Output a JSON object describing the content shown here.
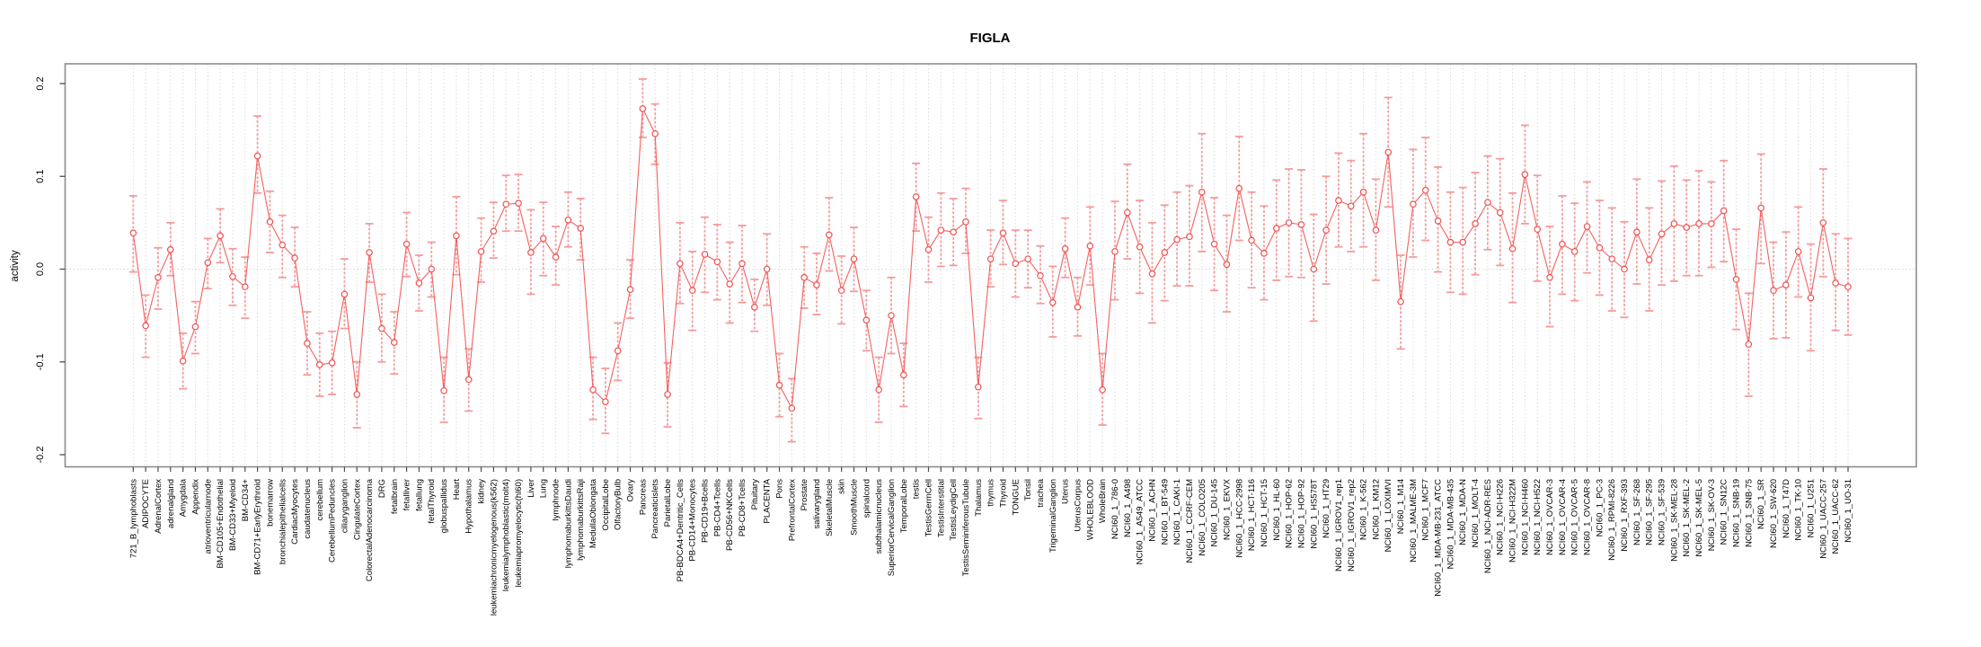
{
  "page": {
    "title": "FIGLA"
  },
  "chart_data": {
    "type": "line",
    "title": "FIGLA",
    "xlabel": "",
    "ylabel": "activity",
    "ylim": [
      -0.2,
      0.2
    ],
    "yticks": [
      {
        "label": "0.2",
        "value": 0.2
      },
      {
        "label": "0.1",
        "value": 0.1
      },
      {
        "label": "0.0",
        "value": 0.0
      },
      {
        "label": "-0.1",
        "value": -0.1
      },
      {
        "label": "-0.2",
        "value": -0.2
      }
    ],
    "grid": "dotted vertical gridline at every category; dotted horizontal line at y=0",
    "legend_position": "none",
    "marker": "open-circle-with-error-bars-connected-by-line",
    "colors": {
      "point": "#f25050",
      "line": "#f25050",
      "error_bar": "#f59b9b",
      "gridline": "#dcdcdc",
      "zero_line": "#d8d8d8",
      "box": "#8c8c8c",
      "tick": "#4d4d4d",
      "text": "#000000",
      "background": "#ffffff"
    },
    "categories": [
      "721_B_lymphoblasts",
      "ADIPOCYTE",
      "AdrenalCortex",
      "adrenalgland",
      "Amygdala",
      "Appendix",
      "atrioventricularnode",
      "BM-CD105+Endothelial",
      "BM-CD33+Myeloid",
      "BM-CD34+",
      "BM-CD71+EarlyErythroid",
      "bonemarrow",
      "bronchialepithelialcells",
      "CardiacMyocytes",
      "caudatenucleus",
      "cerebellum",
      "CerebellumPeduncles",
      "ciliaryganglion",
      "CingulateCortex",
      "ColorectalAdenocarcinoma",
      "DRG",
      "fetalbrain",
      "fetalliver",
      "fetallung",
      "fetalThyroid",
      "globuspallidus",
      "Heart",
      "Hypothalamus",
      "kidney",
      "leukemiachronicmyelogenous(k562)",
      "leukemialymphoblastic(molt4)",
      "leukemiapromyelocytic(hl60)",
      "Liver",
      "Lung",
      "lymphnode",
      "lymphomaburkittsDaudi",
      "lymphomaburkittsRaji",
      "MedullaOblongata",
      "OccipitalLobe",
      "OlfactoryBulb",
      "Ovary",
      "Pancreas",
      "Pancreaticislets",
      "ParietalLobe",
      "PB-BDCA4+Dentritic_Cells",
      "PB-CD14+Monocytes",
      "PB-CD19+Bcells",
      "PB-CD4+Tcells",
      "PB-CD56+NKCells",
      "PB-CD8+Tcells",
      "Pituitary",
      "PLACENTA",
      "Pons",
      "PrefrontalCortex",
      "Prostate",
      "salivarygland",
      "SkeletalMuscle",
      "skin",
      "SmoothMuscle",
      "spinalcord",
      "subthalamicnucleus",
      "SuperiorCervicalGanglion",
      "TemporalLobe",
      "testis",
      "TestisGermCell",
      "TestisInterstitial",
      "TestisLeydigCell",
      "TestisSeminiferousTubule",
      "Thalamus",
      "thymus",
      "Thyroid",
      "TONGUE",
      "Tonsil",
      "trachea",
      "TrigeminalGanglion",
      "Uterus",
      "UterusCorpus",
      "WHOLEBLOOD",
      "WholeBrain",
      "NCI60_1_786-0",
      "NCI60_1_A498",
      "NCI60_1_A549_ATCC",
      "NCI60_1_ACHN",
      "NCI60_1_BT-549",
      "NCI60_1_CAKI-1",
      "NCI60_1_CCRF-CEM",
      "NCI60_1_COLO205",
      "NCI60_1_DU-145",
      "NCI60_1_EKVX",
      "NCI60_1_HCC-2998",
      "NCI60_1_HCT-116",
      "NCI60_1_HCT-15",
      "NCI60_1_HL-60",
      "NCI60_1_HOP-62",
      "NCI60_1_HOP-92",
      "NCI60_1_HS578T",
      "NCI60_1_HT29",
      "NCI60_1_IGROV1_rep1",
      "NCI60_1_IGROV1_rep2",
      "NCI60_1_K-562",
      "NCI60_1_KM12",
      "NCI60_1_LOXIMVI",
      "NCI60_1_M14",
      "NCI60_1_MALME-3M",
      "NCI60_1_MCF7",
      "NCI60_1_MDA-MB-231_ATCC",
      "NCI60_1_MDA-MB-435",
      "NCI60_1_MDA-N",
      "NCI60_1_MOLT-4",
      "NCI60_1_NCI-ADR-RES",
      "NCI60_1_NCI-H226",
      "NCI60_1_NCI-H322M",
      "NCI60_1_NCI-H460",
      "NCI60_1_NCI-H522",
      "NCI60_1_OVCAR-3",
      "NCI60_1_OVCAR-4",
      "NCI60_1_OVCAR-5",
      "NCI60_1_OVCAR-8",
      "NCI60_1_PC-3",
      "NCI60_1_RPMI-8226",
      "NCI60_1_RXF-393",
      "NCI60_1_SF-268",
      "NCI60_1_SF-295",
      "NCI60_1_SF-539",
      "NCI60_1_SK-MEL-28",
      "NCI60_1_SK-MEL-2",
      "NCI60_1_SK-MEL-5",
      "NCI60_1_SK-OV-3",
      "NCI60_1_SN12C",
      "NCI60_1_SNB-19",
      "NCI60_1_SNB-75",
      "NCI60_1_SR",
      "NCI60_1_SW-620",
      "NCI60_1_T47D",
      "NCI60_1_TK-10",
      "NCI60_1_U251",
      "NCI60_1_UACC-257",
      "NCI60_1_UACC-62",
      "NCI60_1_UO-31"
    ],
    "series": [
      {
        "name": "activity",
        "values": [
          0.039,
          -0.061,
          -0.009,
          0.021,
          -0.099,
          -0.062,
          0.007,
          0.036,
          -0.008,
          -0.019,
          0.122,
          0.051,
          0.026,
          0.012,
          -0.08,
          -0.103,
          -0.101,
          -0.027,
          -0.135,
          0.018,
          -0.064,
          -0.079,
          0.027,
          -0.015,
          0.0,
          -0.131,
          0.036,
          -0.119,
          0.019,
          0.041,
          0.07,
          0.071,
          0.018,
          0.033,
          0.013,
          0.053,
          0.044,
          -0.13,
          -0.143,
          -0.088,
          -0.022,
          0.173,
          0.146,
          -0.135,
          0.006,
          -0.023,
          0.016,
          0.008,
          -0.016,
          0.006,
          -0.041,
          0.0,
          -0.125,
          -0.15,
          -0.009,
          -0.017,
          0.037,
          -0.023,
          0.011,
          -0.055,
          -0.13,
          -0.05,
          -0.114,
          0.078,
          0.021,
          0.042,
          0.04,
          0.051,
          -0.127,
          0.011,
          0.039,
          0.006,
          0.011,
          -0.007,
          -0.036,
          0.022,
          -0.041,
          0.025,
          -0.13,
          0.019,
          0.061,
          0.024,
          -0.005,
          0.018,
          0.032,
          0.035,
          0.083,
          0.027,
          0.005,
          0.087,
          0.031,
          0.017,
          0.044,
          0.05,
          0.048,
          0.0,
          0.042,
          0.074,
          0.068,
          0.083,
          0.042,
          0.126,
          -0.035,
          0.07,
          0.085,
          0.052,
          0.029,
          0.029,
          0.049,
          0.072,
          0.061,
          0.022,
          0.102,
          0.043,
          -0.009,
          0.027,
          0.019,
          0.046,
          0.023,
          0.011,
          0.0,
          0.04,
          0.01,
          0.038,
          0.049,
          0.045,
          0.049,
          0.049,
          0.063,
          -0.011,
          -0.081,
          0.066,
          -0.023,
          -0.017,
          0.019,
          -0.031,
          0.05,
          -0.015,
          -0.019
        ],
        "err_lo": [
          -0.003,
          -0.095,
          -0.043,
          -0.007,
          -0.129,
          -0.091,
          -0.021,
          0.007,
          -0.039,
          -0.053,
          0.082,
          0.018,
          -0.009,
          -0.019,
          -0.114,
          -0.137,
          -0.135,
          -0.064,
          -0.171,
          -0.014,
          -0.1,
          -0.113,
          -0.008,
          -0.045,
          -0.03,
          -0.165,
          -0.006,
          -0.153,
          -0.014,
          0.012,
          0.041,
          0.041,
          -0.027,
          -0.007,
          -0.017,
          0.024,
          0.01,
          -0.162,
          -0.177,
          -0.12,
          -0.053,
          0.142,
          0.113,
          -0.17,
          -0.037,
          -0.066,
          -0.025,
          -0.033,
          -0.058,
          -0.036,
          -0.067,
          -0.039,
          -0.159,
          -0.186,
          -0.042,
          -0.049,
          -0.002,
          -0.059,
          -0.024,
          -0.088,
          -0.165,
          -0.091,
          -0.148,
          0.041,
          -0.014,
          0.003,
          0.004,
          0.017,
          -0.161,
          -0.019,
          0.005,
          -0.03,
          -0.02,
          -0.037,
          -0.073,
          -0.009,
          -0.072,
          -0.017,
          -0.168,
          -0.033,
          0.011,
          -0.026,
          -0.058,
          -0.034,
          -0.018,
          -0.018,
          0.019,
          -0.023,
          -0.046,
          0.031,
          -0.02,
          -0.033,
          -0.012,
          -0.008,
          -0.009,
          -0.056,
          -0.016,
          0.024,
          0.019,
          0.024,
          -0.012,
          0.067,
          -0.086,
          0.013,
          0.031,
          -0.003,
          -0.025,
          -0.027,
          -0.006,
          0.021,
          0.004,
          -0.036,
          0.049,
          -0.013,
          -0.062,
          -0.027,
          -0.034,
          -0.004,
          -0.028,
          -0.045,
          -0.052,
          -0.016,
          -0.045,
          -0.017,
          -0.013,
          -0.007,
          -0.007,
          0.002,
          0.008,
          -0.065,
          -0.137,
          0.006,
          -0.075,
          -0.074,
          -0.03,
          -0.088,
          -0.008,
          -0.066,
          -0.071
        ],
        "err_hi": [
          0.079,
          -0.028,
          0.023,
          0.05,
          -0.069,
          -0.035,
          0.033,
          0.065,
          0.022,
          0.013,
          0.165,
          0.084,
          0.058,
          0.045,
          -0.046,
          -0.069,
          -0.067,
          0.011,
          -0.1,
          0.049,
          -0.027,
          -0.046,
          0.061,
          0.015,
          0.029,
          -0.095,
          0.078,
          -0.086,
          0.055,
          0.072,
          0.101,
          0.102,
          0.064,
          0.072,
          0.046,
          0.083,
          0.076,
          -0.095,
          -0.107,
          -0.058,
          0.01,
          0.205,
          0.178,
          -0.101,
          0.05,
          0.019,
          0.056,
          0.048,
          0.029,
          0.047,
          -0.011,
          0.038,
          -0.091,
          -0.118,
          0.024,
          0.017,
          0.077,
          0.014,
          0.045,
          -0.023,
          -0.095,
          -0.009,
          -0.08,
          0.114,
          0.056,
          0.082,
          0.076,
          0.087,
          -0.095,
          0.042,
          0.074,
          0.042,
          0.042,
          0.025,
          0.003,
          0.055,
          -0.009,
          0.067,
          -0.091,
          0.073,
          0.113,
          0.074,
          0.05,
          0.069,
          0.083,
          0.09,
          0.146,
          0.077,
          0.058,
          0.143,
          0.083,
          0.068,
          0.096,
          0.108,
          0.107,
          0.059,
          0.1,
          0.125,
          0.117,
          0.146,
          0.097,
          0.185,
          0.015,
          0.129,
          0.142,
          0.11,
          0.083,
          0.088,
          0.104,
          0.122,
          0.119,
          0.082,
          0.155,
          0.101,
          0.046,
          0.079,
          0.071,
          0.094,
          0.074,
          0.066,
          0.051,
          0.097,
          0.066,
          0.095,
          0.111,
          0.096,
          0.106,
          0.094,
          0.117,
          0.043,
          -0.026,
          0.124,
          0.029,
          0.04,
          0.067,
          0.027,
          0.108,
          0.038,
          0.033
        ]
      }
    ]
  }
}
